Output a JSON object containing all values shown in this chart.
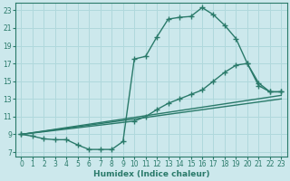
{
  "bg_color": "#cce8ec",
  "grid_color": "#b0d8dc",
  "line_color": "#2a7a6a",
  "xlabel": "Humidex (Indice chaleur)",
  "xlim": [
    -0.5,
    23.5
  ],
  "ylim": [
    6.5,
    23.8
  ],
  "yticks": [
    7,
    9,
    11,
    13,
    15,
    17,
    19,
    21,
    23
  ],
  "xticks": [
    0,
    1,
    2,
    3,
    4,
    5,
    6,
    7,
    8,
    9,
    10,
    11,
    12,
    13,
    14,
    15,
    16,
    17,
    18,
    19,
    20,
    21,
    22,
    23
  ],
  "curve1_x": [
    0,
    1,
    2,
    3,
    4,
    5,
    6,
    7,
    8,
    9,
    10,
    11,
    12,
    13,
    14,
    15,
    16,
    17,
    18,
    19,
    20,
    21,
    22,
    23
  ],
  "curve1_y": [
    9.0,
    8.8,
    8.5,
    8.4,
    8.4,
    7.8,
    7.3,
    7.3,
    7.3,
    8.2,
    17.5,
    17.8,
    20.0,
    22.0,
    22.2,
    22.3,
    23.3,
    22.5,
    21.3,
    19.8,
    17.0,
    14.5,
    13.8,
    13.8
  ],
  "curve2_x": [
    0,
    10,
    11,
    12,
    13,
    14,
    15,
    16,
    17,
    18,
    19,
    20,
    21,
    22,
    23
  ],
  "curve2_y": [
    9.0,
    10.5,
    11.0,
    11.8,
    12.5,
    13.0,
    13.5,
    14.0,
    15.0,
    16.0,
    16.8,
    17.0,
    14.8,
    13.8,
    13.8
  ],
  "line3_x": [
    0,
    23
  ],
  "line3_y": [
    9.0,
    13.4
  ],
  "line4_x": [
    0,
    23
  ],
  "line4_y": [
    9.0,
    13.0
  ],
  "marker": "+",
  "markersize": 4,
  "linewidth": 1.0,
  "tick_fontsize": 5.5,
  "xlabel_fontsize": 6.5
}
